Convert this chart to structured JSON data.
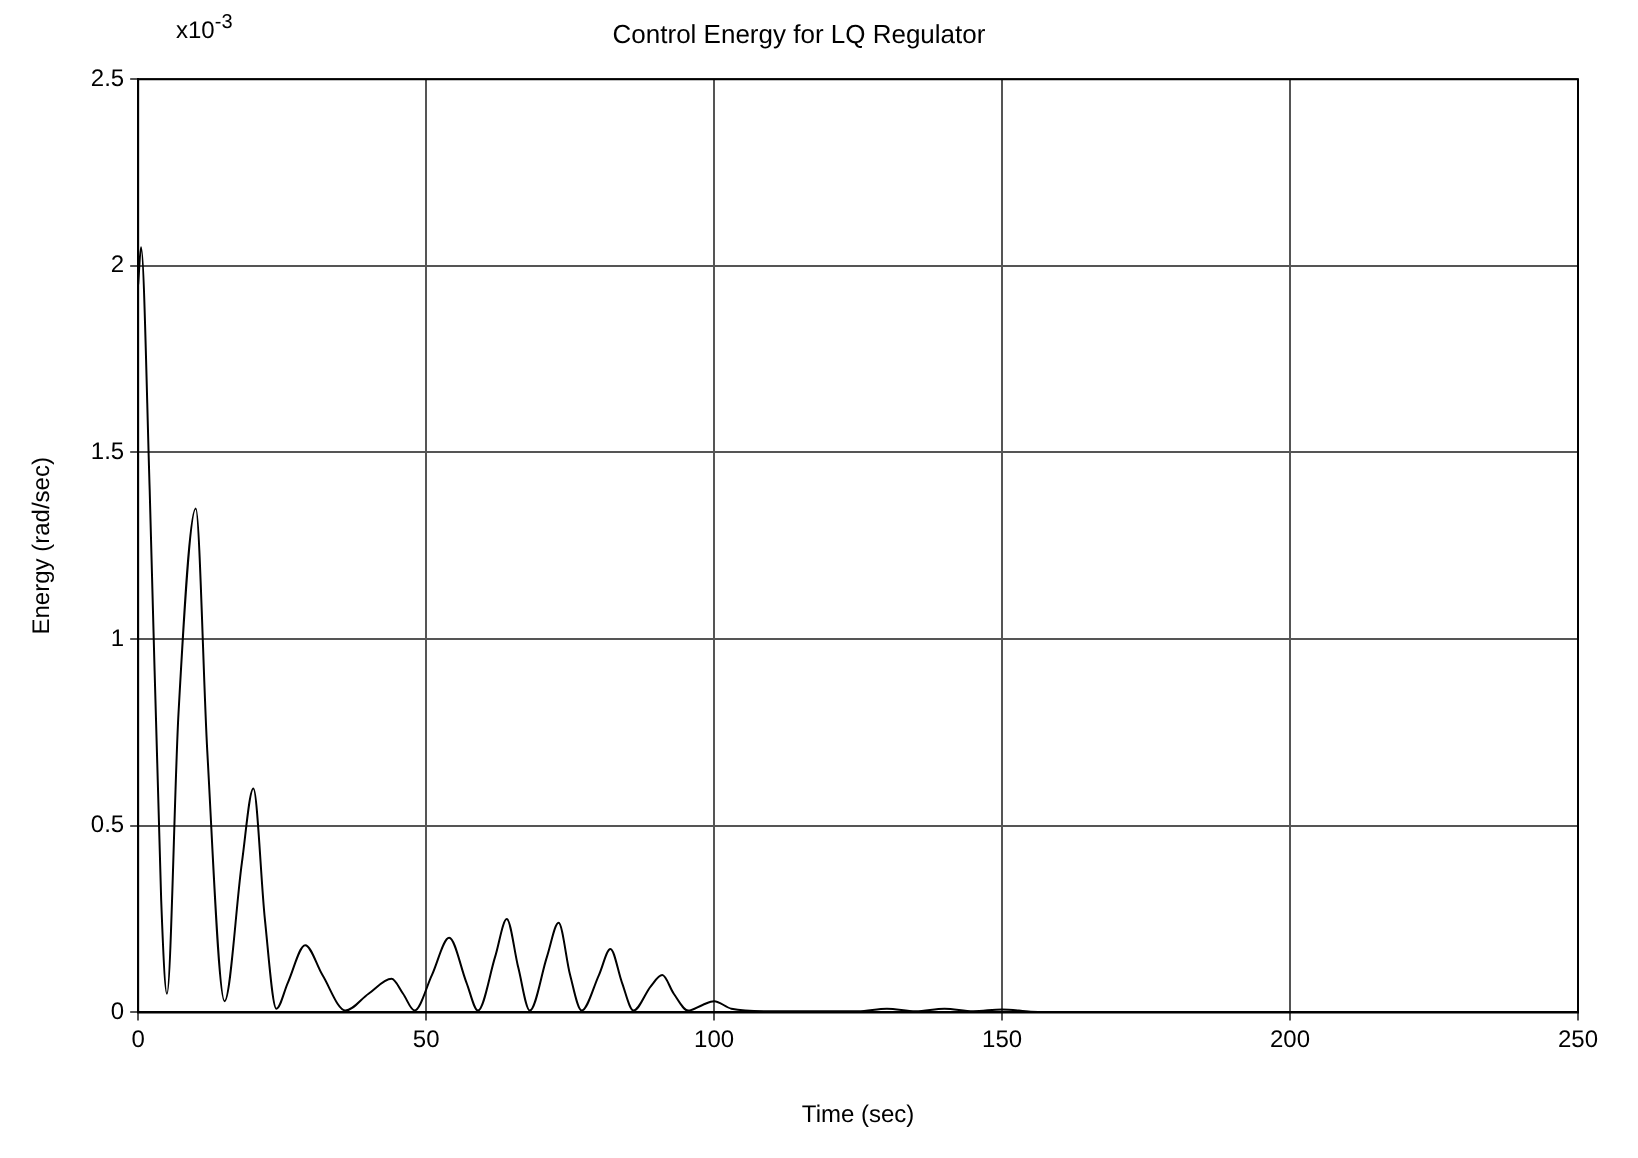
{
  "chart_data": {
    "type": "line",
    "title": "Control Energy for LQ Regulator",
    "xlabel": "Time (sec)",
    "ylabel": "Energy (rad/sec)",
    "annotations": [
      "x10$^{-3}$"
    ],
    "x": [
      0,
      0.5,
      2,
      4,
      5,
      7,
      10,
      12,
      15,
      18,
      20,
      22,
      24,
      26,
      29,
      32,
      36,
      40,
      44,
      46,
      48,
      51,
      54,
      57,
      59,
      62,
      64,
      66,
      68,
      71,
      73,
      75,
      77,
      80,
      82,
      84,
      86,
      89,
      91,
      93,
      95.5,
      98,
      100,
      103,
      110,
      125,
      130,
      135,
      140,
      145,
      150,
      155,
      160,
      180,
      200,
      250
    ],
    "series": [
      {
        "color": "#000000",
        "values": [
          1.95,
          2.05,
          1.4,
          0.3,
          0.05,
          0.8,
          1.35,
          0.7,
          0.03,
          0.4,
          0.6,
          0.25,
          0.01,
          0.08,
          0.18,
          0.1,
          0.005,
          0.05,
          0.09,
          0.05,
          0.005,
          0.1,
          0.2,
          0.08,
          0.005,
          0.15,
          0.25,
          0.12,
          0.005,
          0.15,
          0.24,
          0.1,
          0.005,
          0.1,
          0.17,
          0.08,
          0.005,
          0.07,
          0.1,
          0.05,
          0.005,
          0.02,
          0.03,
          0.01,
          0.003,
          0.003,
          0.01,
          0.003,
          0.01,
          0.003,
          0.008,
          0.002,
          0,
          0,
          0,
          0
        ]
      }
    ],
    "xlim": [
      0,
      250
    ],
    "xticks": [
      0,
      50,
      100,
      150,
      200,
      250
    ],
    "ylim": [
      0,
      2.5
    ],
    "yticks": [
      0,
      0.5,
      1,
      1.5,
      2,
      2.5
    ],
    "grid": true,
    "legend": false,
    "marker": "none",
    "line_style": "solid"
  }
}
